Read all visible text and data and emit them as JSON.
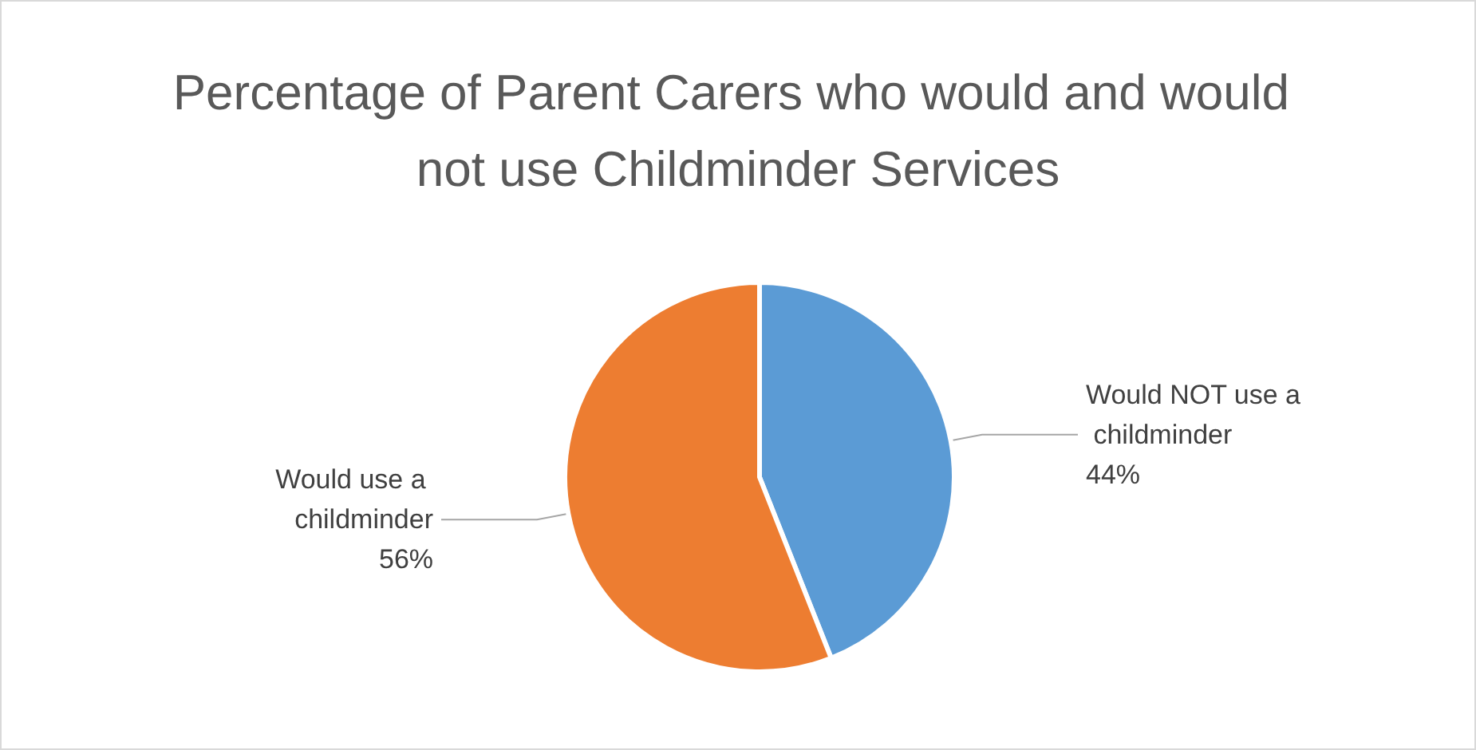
{
  "chart_data": {
    "type": "pie",
    "title": "Percentage of Parent Carers who would and would not use Childminder Services",
    "categories": [
      "Would NOT use a childminder",
      "Would use a childminder"
    ],
    "values": [
      44,
      56
    ],
    "value_labels": [
      "44%",
      "56%"
    ],
    "colors": [
      "#5b9bd5",
      "#ed7d31"
    ],
    "legend": false
  }
}
